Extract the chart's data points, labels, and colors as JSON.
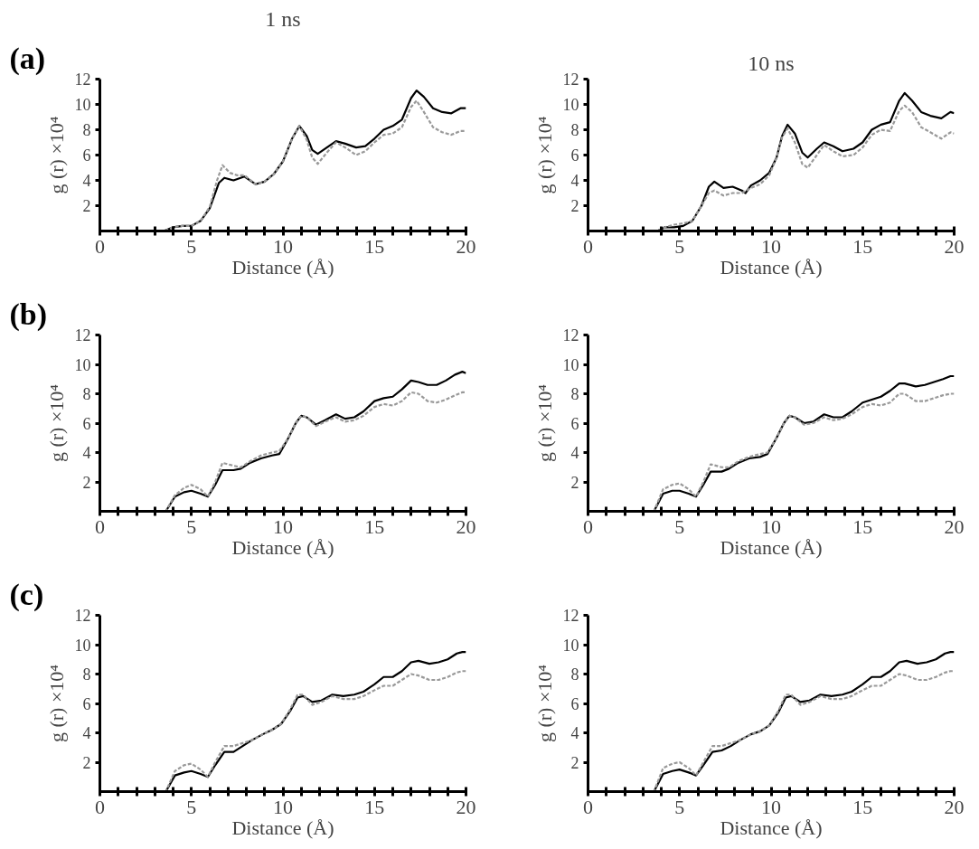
{
  "chart_data": [
    {
      "type": "line",
      "title": "1 ns",
      "annotations": [
        "(a)"
      ],
      "xlabel": "Distance (Å)",
      "ylabel": "g (r) ×10⁴",
      "xlim": [
        0,
        20
      ],
      "ylim": [
        0,
        12
      ],
      "xticks": [
        0,
        {
          "value": 1,
          "label": null
        },
        {
          "value": 2,
          "label": null
        },
        {
          "value": 3,
          "label": null
        },
        {
          "value": 4,
          "label": null
        },
        5,
        {
          "value": 6,
          "label": null
        },
        {
          "value": 7,
          "label": null
        },
        {
          "value": 8,
          "label": null
        },
        {
          "value": 9,
          "label": null
        },
        10,
        {
          "value": 11,
          "label": null
        },
        {
          "value": 12,
          "label": null
        },
        {
          "value": 13,
          "label": null
        },
        {
          "value": 14,
          "label": null
        },
        15,
        {
          "value": 16,
          "label": null
        },
        {
          "value": 17,
          "label": null
        },
        {
          "value": 18,
          "label": null
        },
        {
          "value": 19,
          "label": null
        },
        20
      ],
      "yticks": [
        2,
        4,
        6,
        8,
        10,
        12
      ],
      "grid": false,
      "series": [
        {
          "color": "#000000",
          "line_style": "solid",
          "x": [
            0,
            3.5,
            4,
            4.5,
            5,
            5.5,
            6,
            6.5,
            6.8,
            7.3,
            7.9,
            8.5,
            9,
            9.5,
            10,
            10.5,
            10.9,
            11.3,
            11.6,
            11.9,
            12.4,
            12.9,
            13.4,
            14,
            14.5,
            15,
            15.5,
            16,
            16.5,
            17,
            17.3,
            17.7,
            18.2,
            18.7,
            19.2,
            19.7,
            20
          ],
          "values": [
            0,
            0,
            0.3,
            0.4,
            0.4,
            0.8,
            1.8,
            3.8,
            4.2,
            4.0,
            4.3,
            3.7,
            3.9,
            4.5,
            5.5,
            7.3,
            8.3,
            7.5,
            6.4,
            6.1,
            6.6,
            7.1,
            6.9,
            6.6,
            6.7,
            7.3,
            8.0,
            8.3,
            8.8,
            10.5,
            11.1,
            10.6,
            9.7,
            9.4,
            9.3,
            9.7,
            9.7
          ]
        },
        {
          "color": "#999999",
          "line_style": "dashed",
          "x": [
            0,
            3.5,
            4,
            4.5,
            5,
            5.5,
            6,
            6.4,
            6.7,
            7.1,
            7.5,
            7.9,
            8.5,
            9,
            9.5,
            10,
            10.5,
            10.9,
            11.3,
            11.6,
            11.9,
            12.4,
            12.9,
            13.4,
            14,
            14.5,
            15,
            15.5,
            16,
            16.5,
            17,
            17.3,
            17.7,
            18.2,
            18.7,
            19.2,
            19.7,
            20
          ],
          "values": [
            0,
            0,
            0.3,
            0.4,
            0.4,
            0.8,
            1.9,
            4.0,
            5.2,
            4.6,
            4.4,
            4.4,
            3.7,
            3.9,
            4.5,
            5.5,
            7.3,
            8.3,
            7.2,
            5.8,
            5.3,
            6.2,
            7.0,
            6.6,
            6.0,
            6.3,
            7.0,
            7.6,
            7.7,
            8.2,
            9.8,
            10.3,
            9.4,
            8.2,
            7.8,
            7.6,
            7.9,
            7.9
          ]
        }
      ]
    },
    {
      "type": "line",
      "title": "10 ns",
      "xlabel": "Distance (Å)",
      "ylabel": "g (r) ×10⁴",
      "xlim": [
        0,
        20
      ],
      "ylim": [
        0,
        12
      ],
      "xticks": [
        0,
        {
          "value": 1,
          "label": null
        },
        {
          "value": 2,
          "label": null
        },
        {
          "value": 3,
          "label": null
        },
        {
          "value": 4,
          "label": null
        },
        5,
        {
          "value": 6,
          "label": null
        },
        {
          "value": 7,
          "label": null
        },
        {
          "value": 8,
          "label": null
        },
        {
          "value": 9,
          "label": null
        },
        10,
        {
          "value": 11,
          "label": null
        },
        {
          "value": 12,
          "label": null
        },
        {
          "value": 13,
          "label": null
        },
        {
          "value": 14,
          "label": null
        },
        15,
        {
          "value": 16,
          "label": null
        },
        {
          "value": 17,
          "label": null
        },
        {
          "value": 18,
          "label": null
        },
        {
          "value": 19,
          "label": null
        },
        20
      ],
      "yticks": [
        2,
        4,
        6,
        8,
        10,
        12
      ],
      "grid": false,
      "series": [
        {
          "color": "#000000",
          "line_style": "solid",
          "x": [
            0,
            3.8,
            4.2,
            4.7,
            5.2,
            5.7,
            6.2,
            6.6,
            6.9,
            7.4,
            7.9,
            8.4,
            8.6,
            8.9,
            9.4,
            9.9,
            10.3,
            10.6,
            10.9,
            11.3,
            11.7,
            12,
            12.5,
            12.9,
            13.4,
            13.9,
            14.5,
            15,
            15.5,
            16,
            16.5,
            17,
            17.3,
            17.7,
            18.2,
            18.7,
            19.3,
            19.8,
            20
          ],
          "values": [
            0,
            0,
            0.3,
            0.3,
            0.4,
            0.8,
            2.0,
            3.5,
            3.9,
            3.4,
            3.5,
            3.2,
            3.0,
            3.6,
            4.0,
            4.6,
            5.8,
            7.5,
            8.4,
            7.7,
            6.2,
            5.8,
            6.5,
            7.0,
            6.7,
            6.3,
            6.5,
            7.0,
            8.0,
            8.4,
            8.6,
            10.3,
            10.9,
            10.3,
            9.4,
            9.1,
            8.9,
            9.4,
            9.3
          ]
        },
        {
          "color": "#999999",
          "line_style": "dashed",
          "x": [
            0,
            3.8,
            4.2,
            4.7,
            5.2,
            5.7,
            6.2,
            6.6,
            6.9,
            7.4,
            7.9,
            8.4,
            8.9,
            9.4,
            9.9,
            10.3,
            10.6,
            10.9,
            11.3,
            11.7,
            12,
            12.5,
            12.9,
            13.4,
            13.9,
            14.5,
            15,
            15.5,
            16,
            16.5,
            17,
            17.3,
            17.7,
            18.2,
            18.7,
            19.3,
            19.8,
            20
          ],
          "values": [
            0,
            0,
            0.3,
            0.5,
            0.6,
            0.8,
            2.0,
            3.0,
            3.2,
            2.8,
            3.0,
            3.0,
            3.4,
            3.7,
            4.4,
            5.8,
            7.4,
            8.1,
            7.0,
            5.3,
            5.0,
            6.0,
            6.8,
            6.3,
            5.9,
            6.0,
            6.6,
            7.6,
            8.0,
            7.9,
            9.5,
            9.9,
            9.4,
            8.2,
            7.8,
            7.3,
            7.8,
            7.7
          ]
        }
      ]
    },
    {
      "type": "line",
      "annotations": [
        "(b)"
      ],
      "xlabel": "Distance (Å)",
      "ylabel": "g (r) ×10⁴",
      "xlim": [
        0,
        20
      ],
      "ylim": [
        0,
        12
      ],
      "xticks": [
        0,
        {
          "value": 1,
          "label": null
        },
        {
          "value": 2,
          "label": null
        },
        {
          "value": 3,
          "label": null
        },
        {
          "value": 4,
          "label": null
        },
        5,
        {
          "value": 6,
          "label": null
        },
        {
          "value": 7,
          "label": null
        },
        {
          "value": 8,
          "label": null
        },
        {
          "value": 9,
          "label": null
        },
        10,
        {
          "value": 11,
          "label": null
        },
        {
          "value": 12,
          "label": null
        },
        {
          "value": 13,
          "label": null
        },
        {
          "value": 14,
          "label": null
        },
        15,
        {
          "value": 16,
          "label": null
        },
        {
          "value": 17,
          "label": null
        },
        {
          "value": 18,
          "label": null
        },
        {
          "value": 19,
          "label": null
        },
        20
      ],
      "yticks": [
        2,
        4,
        6,
        8,
        10,
        12
      ],
      "grid": false,
      "series": [
        {
          "color": "#000000",
          "line_style": "solid",
          "x": [
            0,
            3.6,
            4.1,
            4.6,
            5,
            5.5,
            5.9,
            6.3,
            6.7,
            7.3,
            7.7,
            8.2,
            8.8,
            9.4,
            9.8,
            10.3,
            10.7,
            11,
            11.3,
            11.8,
            12.3,
            12.9,
            13.4,
            13.9,
            14.4,
            15,
            15.5,
            16,
            16.5,
            17,
            17.4,
            17.9,
            18.4,
            18.9,
            19.4,
            19.8,
            20
          ],
          "values": [
            0,
            0,
            1.0,
            1.3,
            1.4,
            1.2,
            1.0,
            1.8,
            2.8,
            2.8,
            2.9,
            3.3,
            3.6,
            3.8,
            3.9,
            5.0,
            6.0,
            6.5,
            6.4,
            5.9,
            6.2,
            6.6,
            6.3,
            6.4,
            6.8,
            7.5,
            7.7,
            7.8,
            8.3,
            8.9,
            8.8,
            8.6,
            8.6,
            8.9,
            9.3,
            9.5,
            9.4
          ]
        },
        {
          "color": "#999999",
          "line_style": "dashed",
          "x": [
            0,
            3.6,
            4.1,
            4.6,
            5,
            5.5,
            5.9,
            6.3,
            6.7,
            7.3,
            7.7,
            8.2,
            8.8,
            9.4,
            9.8,
            10.3,
            10.7,
            11,
            11.3,
            11.8,
            12.3,
            12.9,
            13.4,
            13.9,
            14.4,
            15,
            15.5,
            16,
            16.5,
            17,
            17.4,
            17.9,
            18.4,
            18.9,
            19.4,
            19.8,
            20
          ],
          "values": [
            0,
            0,
            1.1,
            1.6,
            1.8,
            1.5,
            1.0,
            2.0,
            3.3,
            3.1,
            3.0,
            3.4,
            3.8,
            4.0,
            4.1,
            5.0,
            6.0,
            6.5,
            6.4,
            5.8,
            6.1,
            6.4,
            6.1,
            6.2,
            6.5,
            7.1,
            7.3,
            7.2,
            7.5,
            8.1,
            8.0,
            7.5,
            7.4,
            7.6,
            7.9,
            8.1,
            8.1
          ]
        }
      ]
    },
    {
      "type": "line",
      "xlabel": "Distance (Å)",
      "ylabel": "g (r) ×10⁴",
      "xlim": [
        0,
        20
      ],
      "ylim": [
        0,
        12
      ],
      "xticks": [
        0,
        {
          "value": 1,
          "label": null
        },
        {
          "value": 2,
          "label": null
        },
        {
          "value": 3,
          "label": null
        },
        {
          "value": 4,
          "label": null
        },
        5,
        {
          "value": 6,
          "label": null
        },
        {
          "value": 7,
          "label": null
        },
        {
          "value": 8,
          "label": null
        },
        {
          "value": 9,
          "label": null
        },
        10,
        {
          "value": 11,
          "label": null
        },
        {
          "value": 12,
          "label": null
        },
        {
          "value": 13,
          "label": null
        },
        {
          "value": 14,
          "label": null
        },
        15,
        {
          "value": 16,
          "label": null
        },
        {
          "value": 17,
          "label": null
        },
        {
          "value": 18,
          "label": null
        },
        {
          "value": 19,
          "label": null
        },
        20
      ],
      "yticks": [
        2,
        4,
        6,
        8,
        10,
        12
      ],
      "grid": false,
      "series": [
        {
          "color": "#000000",
          "line_style": "solid",
          "x": [
            0,
            3.6,
            4.1,
            4.6,
            5,
            5.5,
            5.9,
            6.3,
            6.7,
            7.3,
            7.7,
            8.2,
            8.8,
            9.4,
            9.8,
            10.3,
            10.7,
            11,
            11.3,
            11.8,
            12.3,
            12.9,
            13.4,
            13.9,
            14.4,
            15,
            15.5,
            16,
            16.5,
            17,
            17.3,
            17.9,
            18.4,
            18.9,
            19.4,
            19.8,
            20
          ],
          "values": [
            0,
            0,
            1.2,
            1.4,
            1.4,
            1.2,
            1.0,
            1.8,
            2.7,
            2.7,
            2.9,
            3.3,
            3.6,
            3.7,
            3.9,
            5.0,
            6.0,
            6.5,
            6.4,
            6.0,
            6.1,
            6.6,
            6.4,
            6.4,
            6.8,
            7.4,
            7.6,
            7.8,
            8.2,
            8.7,
            8.7,
            8.5,
            8.6,
            8.8,
            9.0,
            9.2,
            9.2
          ]
        },
        {
          "color": "#999999",
          "line_style": "dashed",
          "x": [
            0,
            3.6,
            4.1,
            4.6,
            5,
            5.5,
            5.9,
            6.3,
            6.7,
            7.3,
            7.7,
            8.2,
            8.8,
            9.4,
            9.8,
            10.3,
            10.7,
            11,
            11.3,
            11.8,
            12.3,
            12.9,
            13.4,
            13.9,
            14.4,
            15,
            15.5,
            16,
            16.5,
            17,
            17.3,
            17.9,
            18.4,
            18.9,
            19.4,
            19.8,
            20
          ],
          "values": [
            0,
            0,
            1.5,
            1.8,
            1.9,
            1.5,
            1.0,
            2.0,
            3.2,
            3.0,
            3.0,
            3.4,
            3.7,
            3.9,
            4.0,
            5.0,
            6.0,
            6.5,
            6.4,
            5.9,
            6.0,
            6.4,
            6.2,
            6.3,
            6.6,
            7.1,
            7.3,
            7.2,
            7.4,
            8.0,
            8.0,
            7.5,
            7.5,
            7.7,
            7.9,
            8.0,
            8.0
          ]
        }
      ]
    },
    {
      "type": "line",
      "annotations": [
        "(c)"
      ],
      "xlabel": "Distance (Å)",
      "ylabel": "g (r) ×10⁴",
      "xlim": [
        0,
        20
      ],
      "ylim": [
        0,
        12
      ],
      "xticks": [
        0,
        {
          "value": 1,
          "label": null
        },
        {
          "value": 2,
          "label": null
        },
        {
          "value": 3,
          "label": null
        },
        {
          "value": 4,
          "label": null
        },
        5,
        {
          "value": 6,
          "label": null
        },
        {
          "value": 7,
          "label": null
        },
        {
          "value": 8,
          "label": null
        },
        {
          "value": 9,
          "label": null
        },
        10,
        {
          "value": 11,
          "label": null
        },
        {
          "value": 12,
          "label": null
        },
        {
          "value": 13,
          "label": null
        },
        {
          "value": 14,
          "label": null
        },
        15,
        {
          "value": 16,
          "label": null
        },
        {
          "value": 17,
          "label": null
        },
        {
          "value": 18,
          "label": null
        },
        {
          "value": 19,
          "label": null
        },
        20
      ],
      "yticks": [
        2,
        4,
        6,
        8,
        10,
        12
      ],
      "grid": false,
      "series": [
        {
          "color": "#000000",
          "line_style": "solid",
          "x": [
            0,
            3.6,
            4.1,
            4.6,
            5,
            5.5,
            5.9,
            6.3,
            6.8,
            7.3,
            7.8,
            8.3,
            8.9,
            9.4,
            9.9,
            10.4,
            10.8,
            11.1,
            11.6,
            12.1,
            12.7,
            13.3,
            13.9,
            14.4,
            15,
            15.5,
            16,
            16.5,
            17,
            17.4,
            18,
            18.5,
            19,
            19.5,
            19.8,
            20
          ],
          "values": [
            0,
            0,
            1.1,
            1.3,
            1.4,
            1.2,
            1.0,
            1.8,
            2.7,
            2.7,
            3.1,
            3.5,
            3.9,
            4.2,
            4.6,
            5.5,
            6.4,
            6.5,
            6.1,
            6.2,
            6.6,
            6.5,
            6.6,
            6.8,
            7.3,
            7.8,
            7.8,
            8.2,
            8.8,
            8.9,
            8.7,
            8.8,
            9.0,
            9.4,
            9.5,
            9.5
          ]
        },
        {
          "color": "#999999",
          "line_style": "dashed",
          "x": [
            0,
            3.6,
            4.1,
            4.6,
            5,
            5.5,
            5.9,
            6.3,
            6.8,
            7.3,
            7.8,
            8.3,
            8.9,
            9.4,
            9.9,
            10.4,
            10.8,
            11.1,
            11.6,
            12.1,
            12.7,
            13.3,
            13.9,
            14.4,
            15,
            15.5,
            16,
            16.5,
            17,
            17.4,
            18,
            18.5,
            19,
            19.5,
            19.8,
            20
          ],
          "values": [
            0,
            0,
            1.4,
            1.8,
            1.9,
            1.5,
            1.0,
            2.0,
            3.1,
            3.1,
            3.3,
            3.5,
            3.9,
            4.2,
            4.6,
            5.6,
            6.6,
            6.6,
            5.9,
            6.1,
            6.5,
            6.3,
            6.3,
            6.5,
            6.9,
            7.2,
            7.2,
            7.6,
            8.0,
            7.9,
            7.6,
            7.6,
            7.8,
            8.1,
            8.2,
            8.2
          ]
        }
      ]
    },
    {
      "type": "line",
      "xlabel": "Distance (Å)",
      "ylabel": "g (r) ×10⁴",
      "xlim": [
        0,
        20
      ],
      "ylim": [
        0,
        12
      ],
      "xticks": [
        0,
        {
          "value": 1,
          "label": null
        },
        {
          "value": 2,
          "label": null
        },
        {
          "value": 3,
          "label": null
        },
        {
          "value": 4,
          "label": null
        },
        5,
        {
          "value": 6,
          "label": null
        },
        {
          "value": 7,
          "label": null
        },
        {
          "value": 8,
          "label": null
        },
        {
          "value": 9,
          "label": null
        },
        10,
        {
          "value": 11,
          "label": null
        },
        {
          "value": 12,
          "label": null
        },
        {
          "value": 13,
          "label": null
        },
        {
          "value": 14,
          "label": null
        },
        15,
        {
          "value": 16,
          "label": null
        },
        {
          "value": 17,
          "label": null
        },
        {
          "value": 18,
          "label": null
        },
        {
          "value": 19,
          "label": null
        },
        20
      ],
      "yticks": [
        2,
        4,
        6,
        8,
        10,
        12
      ],
      "grid": false,
      "series": [
        {
          "color": "#000000",
          "line_style": "solid",
          "x": [
            0,
            3.6,
            4.1,
            4.6,
            5,
            5.5,
            5.9,
            6.3,
            6.8,
            7.3,
            7.8,
            8.3,
            8.9,
            9.4,
            9.9,
            10.4,
            10.8,
            11.1,
            11.6,
            12.1,
            12.7,
            13.3,
            13.9,
            14.4,
            15,
            15.5,
            16,
            16.5,
            17,
            17.4,
            18,
            18.5,
            19,
            19.5,
            19.8,
            20
          ],
          "values": [
            0,
            0,
            1.2,
            1.4,
            1.5,
            1.3,
            1.1,
            1.8,
            2.7,
            2.8,
            3.1,
            3.5,
            3.9,
            4.1,
            4.5,
            5.4,
            6.4,
            6.5,
            6.1,
            6.2,
            6.6,
            6.5,
            6.6,
            6.8,
            7.3,
            7.8,
            7.8,
            8.2,
            8.8,
            8.9,
            8.7,
            8.8,
            9.0,
            9.4,
            9.5,
            9.5
          ]
        },
        {
          "color": "#999999",
          "line_style": "dashed",
          "x": [
            0,
            3.6,
            4.1,
            4.6,
            5,
            5.5,
            5.9,
            6.3,
            6.8,
            7.3,
            7.8,
            8.3,
            8.9,
            9.4,
            9.9,
            10.4,
            10.8,
            11.1,
            11.6,
            12.1,
            12.7,
            13.3,
            13.9,
            14.4,
            15,
            15.5,
            16,
            16.5,
            17,
            17.4,
            18,
            18.5,
            19,
            19.5,
            19.8,
            20
          ],
          "values": [
            0,
            0,
            1.6,
            1.9,
            2.0,
            1.6,
            1.1,
            2.0,
            3.1,
            3.1,
            3.3,
            3.5,
            3.9,
            4.1,
            4.5,
            5.5,
            6.6,
            6.6,
            5.9,
            6.1,
            6.5,
            6.3,
            6.3,
            6.5,
            6.9,
            7.2,
            7.2,
            7.6,
            8.0,
            7.9,
            7.6,
            7.6,
            7.8,
            8.1,
            8.2,
            8.2
          ]
        }
      ]
    }
  ]
}
